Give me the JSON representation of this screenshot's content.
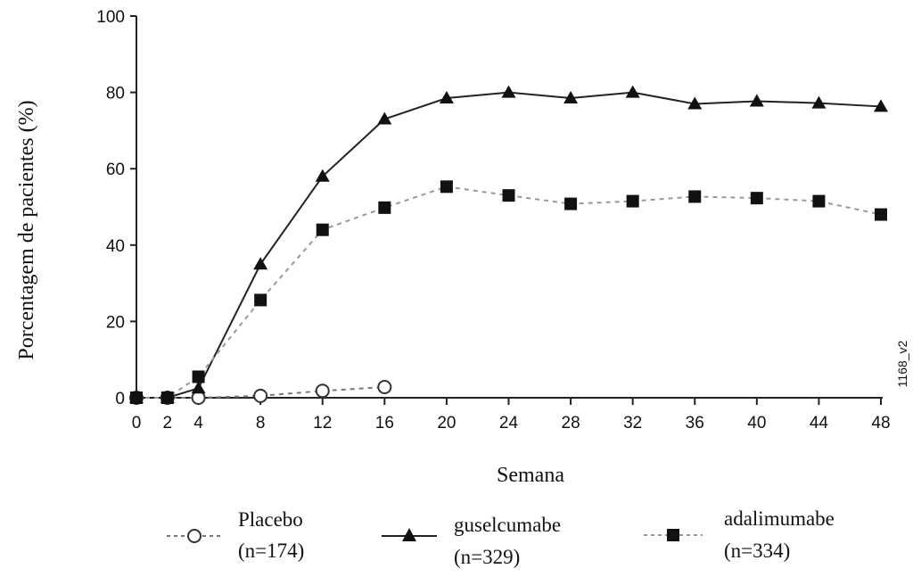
{
  "chart_data": {
    "type": "line",
    "title": "",
    "xlabel": "Semana",
    "ylabel": "Porcentagem de pacientes (%)",
    "xlim": [
      0,
      48
    ],
    "ylim": [
      0,
      100
    ],
    "x_ticks": [
      0,
      2,
      4,
      8,
      12,
      16,
      20,
      24,
      28,
      32,
      36,
      40,
      44,
      48
    ],
    "y_ticks": [
      0,
      20,
      40,
      60,
      80,
      100
    ],
    "grid": false,
    "legend_position": "bottom",
    "side_code": "1168_v2",
    "series": [
      {
        "key": "placebo",
        "name": "Placebo",
        "name_n": "(n=174)",
        "marker": "open-circle",
        "line_style": "dashed",
        "color": "#777777",
        "x": [
          0,
          2,
          4,
          8,
          12,
          16
        ],
        "y": [
          0,
          0,
          0,
          0.5,
          1.8,
          2.8
        ]
      },
      {
        "key": "guselcumabe",
        "name": "guselcumabe",
        "name_n": "(n=329)",
        "marker": "filled-triangle",
        "line_style": "solid",
        "color": "#222222",
        "x": [
          0,
          2,
          4,
          8,
          12,
          16,
          20,
          24,
          28,
          32,
          36,
          40,
          44,
          48
        ],
        "y": [
          0,
          0,
          2.5,
          35,
          58,
          73,
          78.5,
          80,
          78.5,
          80,
          77,
          77.7,
          77.2,
          76.3
        ]
      },
      {
        "key": "adalimumabe",
        "name": "adalimumabe",
        "name_n": "(n=334)",
        "marker": "filled-square",
        "line_style": "dashed",
        "color": "#999999",
        "x": [
          0,
          2,
          4,
          8,
          12,
          16,
          20,
          24,
          28,
          32,
          36,
          40,
          44,
          48
        ],
        "y": [
          0,
          0,
          5.5,
          25.6,
          44,
          49.8,
          55.3,
          53,
          50.8,
          51.5,
          52.7,
          52.3,
          51.5,
          48
        ]
      }
    ]
  }
}
